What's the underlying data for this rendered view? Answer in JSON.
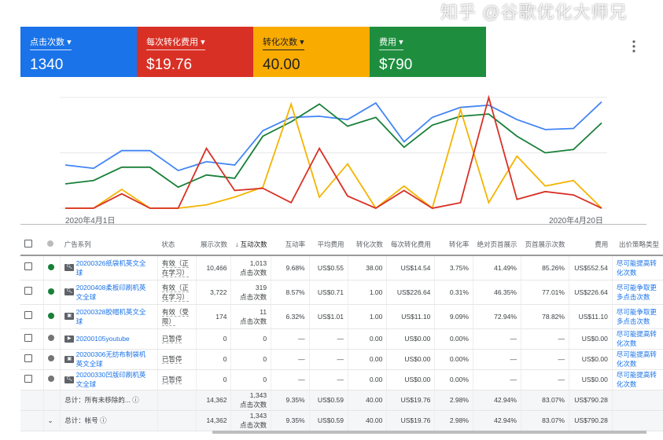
{
  "scorecards": [
    {
      "label": "点击次数",
      "value": "1340",
      "color": "#1a73e8"
    },
    {
      "label": "每次转化费用",
      "value": "$19.76",
      "color": "#d93025"
    },
    {
      "label": "转化次数",
      "value": "40.00",
      "color": "#f9ab00"
    },
    {
      "label": "费用",
      "value": "$790",
      "color": "#1e8e3e"
    }
  ],
  "more_icon": "more-vert-icon",
  "chart_data": {
    "type": "line",
    "x_start_label": "2020年4月1日",
    "x_end_label": "2020年4月20日",
    "x": [
      "4/1",
      "4/2",
      "4/3",
      "4/4",
      "4/5",
      "4/6",
      "4/7",
      "4/8",
      "4/9",
      "4/10",
      "4/11",
      "4/12",
      "4/13",
      "4/14",
      "4/15",
      "4/16",
      "4/17",
      "4/18",
      "4/19",
      "4/20"
    ],
    "grid": true,
    "series": [
      {
        "color": "#4285f4",
        "values": [
          39,
          36,
          52,
          52,
          34,
          42,
          39,
          70,
          82,
          83,
          80,
          95,
          60,
          82,
          91,
          93,
          80,
          71,
          72,
          96
        ]
      },
      {
        "color": "#188038",
        "values": [
          22,
          25,
          37,
          37,
          19,
          30,
          27,
          65,
          78,
          94,
          74,
          82,
          55,
          75,
          83,
          85,
          65,
          50,
          53,
          77
        ]
      },
      {
        "color": "#f4b400",
        "values": [
          0,
          0,
          17,
          0,
          0,
          3,
          10,
          19,
          94,
          10,
          40,
          0,
          20,
          0,
          89,
          5,
          47,
          20,
          25,
          0
        ]
      },
      {
        "color": "#d93025",
        "values": [
          0,
          0,
          13,
          0,
          0,
          54,
          16,
          18,
          5,
          54,
          11,
          0,
          16,
          0,
          5,
          100,
          8,
          15,
          12,
          0
        ]
      }
    ]
  },
  "table": {
    "headers": [
      "广告系列",
      "状态",
      "展示次数",
      "↓ 互动次数",
      "互动率",
      "平均费用",
      "转化次数",
      "每次转化费用",
      "转化率",
      "绝对页首展示",
      "页首展示次数",
      "费用",
      "出价策略类型"
    ],
    "rows": [
      {
        "status_color": "#188038",
        "type": "search",
        "name": "20200326纸袋机英文全球",
        "status": "有效（正在学习）",
        "impr": "10,466",
        "inter": "1,013",
        "inter_unit": "点击次数",
        "rate": "9.68%",
        "avg": "US$0.55",
        "conv": "38.00",
        "cpa": "US$14.54",
        "cr": "3.75%",
        "abs": "41.49%",
        "top": "85.26%",
        "cost": "US$552.54",
        "bid": "尽可能提高转化次数"
      },
      {
        "status_color": "#188038",
        "type": "search",
        "name": "20200408柔板印刷机英文全球",
        "status": "有效（正在学习）",
        "impr": "3,722",
        "inter": "319",
        "inter_unit": "点击次数",
        "rate": "8.57%",
        "avg": "US$0.71",
        "conv": "1.00",
        "cpa": "US$226.64",
        "cr": "0.31%",
        "abs": "46.35%",
        "top": "77.01%",
        "cost": "US$226.64",
        "bid": "尽可能争取更多点击次数"
      },
      {
        "status_color": "#188038",
        "type": "display-search",
        "name": "20200328胶帽机英文全球",
        "status": "有效（受限）",
        "impr": "174",
        "inter": "11",
        "inter_unit": "点击次数",
        "rate": "6.32%",
        "avg": "US$1.01",
        "conv": "1.00",
        "cpa": "US$11.10",
        "cr": "9.09%",
        "abs": "72.94%",
        "top": "78.82%",
        "cost": "US$11.10",
        "bid": "尽可能争取更多点击次数"
      },
      {
        "status_color": "#757575",
        "type": "video",
        "name": "20200105youtube",
        "status": "已暂停",
        "impr": "0",
        "inter": "0",
        "inter_unit": "",
        "rate": "—",
        "avg": "—",
        "conv": "0.00",
        "cpa": "US$0.00",
        "cr": "0.00%",
        "abs": "—",
        "top": "—",
        "cost": "US$0.00",
        "bid": "尽可能提高转化次数"
      },
      {
        "status_color": "#757575",
        "type": "display-search",
        "name": "20200306无纺布制袋机英文全球",
        "status": "已暂停",
        "impr": "0",
        "inter": "0",
        "inter_unit": "",
        "rate": "—",
        "avg": "—",
        "conv": "0.00",
        "cpa": "US$0.00",
        "cr": "0.00%",
        "abs": "—",
        "top": "—",
        "cost": "US$0.00",
        "bid": "尽可能提高转化次数"
      },
      {
        "status_color": "#757575",
        "type": "search",
        "name": "20200330凹版印刷机英文全球",
        "status": "已暂停",
        "impr": "0",
        "inter": "0",
        "inter_unit": "",
        "rate": "—",
        "avg": "—",
        "conv": "0.00",
        "cpa": "US$0.00",
        "cr": "0.00%",
        "abs": "—",
        "top": "—",
        "cost": "US$0.00",
        "bid": "尽可能提高转化次数"
      }
    ],
    "totals": [
      {
        "label": "总计：所有未移除的...",
        "impr": "14,362",
        "inter": "1,343",
        "inter_unit": "点击次数",
        "rate": "9.35%",
        "avg": "US$0.59",
        "conv": "40.00",
        "cpa": "US$19.76",
        "cr": "2.98%",
        "abs": "42.94%",
        "top": "83.07%",
        "cost": "US$790.28"
      },
      {
        "label": "总计：帐号",
        "impr": "14,362",
        "inter": "1,343",
        "inter_unit": "点击次数",
        "rate": "9.35%",
        "avg": "US$0.59",
        "conv": "40.00",
        "cpa": "US$19.76",
        "cr": "2.98%",
        "abs": "42.94%",
        "top": "83.07%",
        "cost": "US$790.28"
      }
    ]
  },
  "watermark": "知乎 @谷歌优化大师兄"
}
